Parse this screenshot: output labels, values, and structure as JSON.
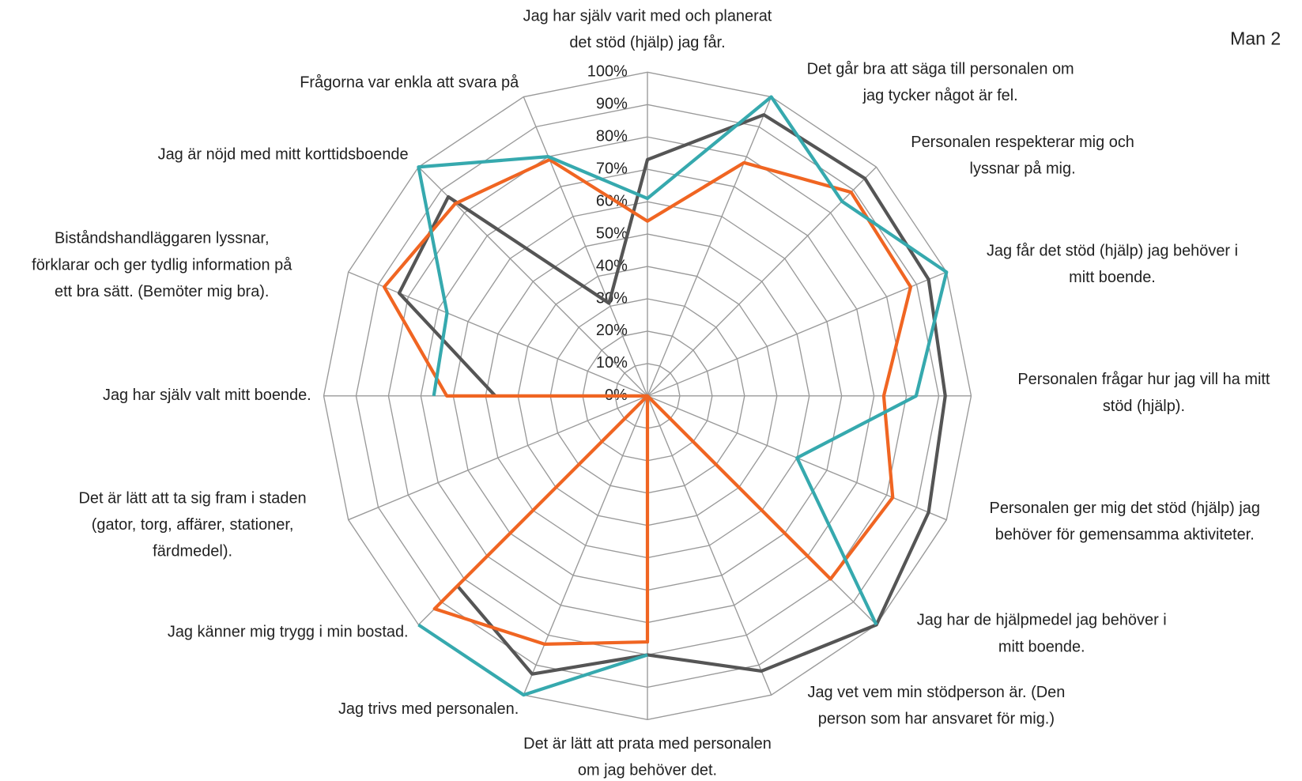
{
  "chart_data": {
    "type": "radar",
    "title": "Man 2",
    "categories": [
      [
        "Jag har själv varit med och planerat",
        "det stöd (hjälp) jag får."
      ],
      [
        "Det går bra att säga till personalen om",
        "jag tycker något är fel."
      ],
      [
        "Personalen respekterar mig och",
        "lyssnar på mig."
      ],
      [
        "Jag får det stöd (hjälp) jag behöver i",
        "mitt boende."
      ],
      [
        "Personalen frågar hur jag vill ha mitt",
        "stöd (hjälp)."
      ],
      [
        "Personalen ger mig det stöd (hjälp) jag",
        "behöver för gemensamma aktiviteter."
      ],
      [
        "Jag har de hjälpmedel jag behöver i",
        "mitt boende."
      ],
      [
        "Jag vet vem min stödperson är. (Den",
        "person som har ansvaret för mig.)"
      ],
      [
        "Det är lätt att prata med personalen",
        "om jag behöver det."
      ],
      [
        "Jag trivs med personalen."
      ],
      [
        "Jag känner mig trygg i min bostad."
      ],
      [
        "Det är lätt att ta sig fram i staden",
        "(gator, torg, affärer, stationer,",
        "färdmedel)."
      ],
      [
        "Jag har själv valt mitt boende."
      ],
      [
        "Biståndshandläggaren lyssnar,",
        "förklarar och ger tydlig information på",
        "ett bra sätt. (Bemöter mig bra)."
      ],
      [
        "Jag är nöjd med mitt korttidsboende"
      ],
      [
        "Frågorna var enkla att svara på"
      ]
    ],
    "series": [
      {
        "color": "#555555",
        "values": [
          73,
          94,
          95,
          94,
          92,
          94,
          100,
          92,
          80,
          93,
          83,
          null,
          47,
          83,
          87,
          31
        ]
      },
      {
        "color": "#f06522",
        "values": [
          54,
          78,
          89,
          88,
          73,
          82,
          80,
          0,
          76,
          83,
          93,
          0,
          62,
          88,
          84,
          79
        ]
      },
      {
        "color": "#36a9ae",
        "values": [
          61,
          100,
          85,
          100,
          83,
          50,
          100,
          null,
          80,
          100,
          100,
          null,
          66,
          67,
          100,
          80
        ]
      }
    ],
    "ylim": [
      0,
      100
    ],
    "yticks": [
      {
        "value": 0,
        "label": "0%"
      },
      {
        "value": 10,
        "label": "10%"
      },
      {
        "value": 20,
        "label": "20%"
      },
      {
        "value": 30,
        "label": "30%"
      },
      {
        "value": 40,
        "label": "40%"
      },
      {
        "value": 50,
        "label": "50%"
      },
      {
        "value": 60,
        "label": "60%"
      },
      {
        "value": 70,
        "label": "70%"
      },
      {
        "value": 80,
        "label": "80%"
      },
      {
        "value": 90,
        "label": "90%"
      },
      {
        "value": 100,
        "label": "100%"
      }
    ],
    "grid": true
  }
}
